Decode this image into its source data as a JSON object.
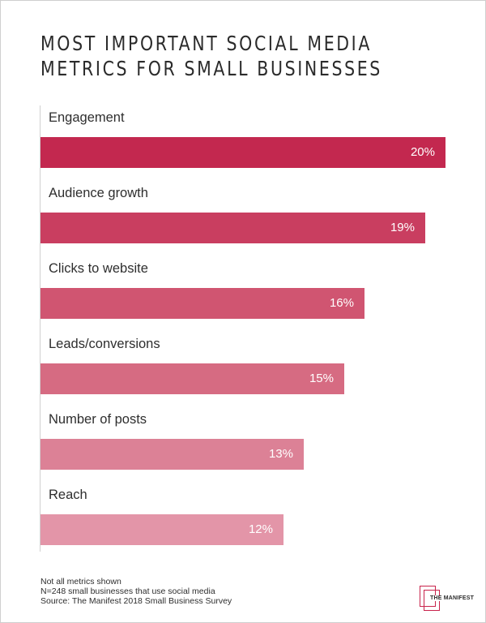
{
  "title_lines": [
    "MOST IMPORTANT SOCIAL MEDIA",
    "METRICS FOR SMALL BUSINESSES"
  ],
  "chart_data": {
    "type": "bar",
    "orientation": "horizontal",
    "title": "MOST IMPORTANT SOCIAL MEDIA METRICS FOR SMALL BUSINESSES",
    "categories": [
      "Engagement",
      "Audience growth",
      "Clicks to website",
      "Leads/conversions",
      "Number of posts",
      "Reach"
    ],
    "values": [
      20,
      19,
      16,
      15,
      13,
      12
    ],
    "value_labels": [
      "20%",
      "19%",
      "16%",
      "15%",
      "13%",
      "12%"
    ],
    "bar_colors": [
      "#c3284f",
      "#c93e60",
      "#d05571",
      "#d66b82",
      "#dc8196",
      "#e395a8"
    ],
    "unit": "%",
    "xlim": [
      0,
      20
    ],
    "grid": false,
    "legend": "none"
  },
  "footnotes": [
    "Not all metrics shown",
    "N=248 small businesses that use social media",
    "Source: The Manifest 2018 Small Business Survey"
  ],
  "logo": {
    "text": "THE MANIFEST",
    "color": "#c8234b"
  }
}
